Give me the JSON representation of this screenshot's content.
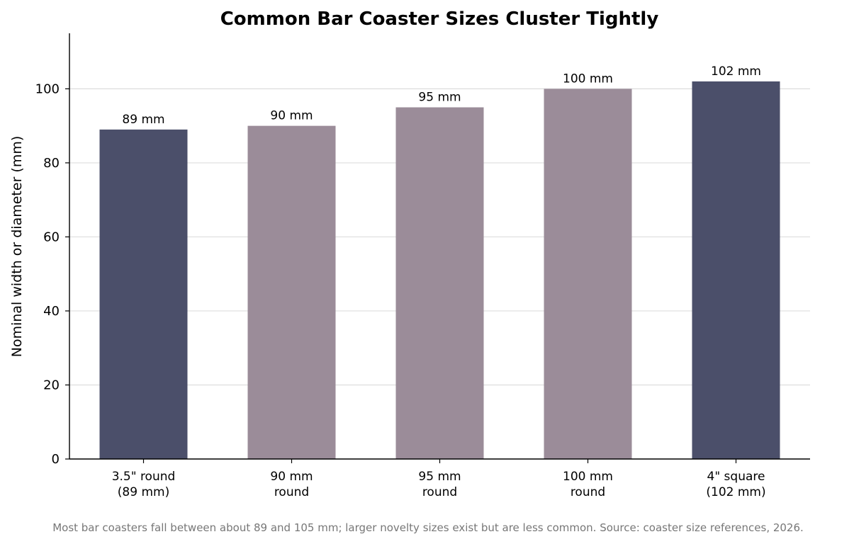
{
  "chart_data": {
    "type": "bar",
    "title": "Common Bar Coaster Sizes Cluster Tightly",
    "xlabel": "",
    "ylabel": "Nominal width or diameter (mm)",
    "ylim": [
      0,
      115
    ],
    "yticks": [
      "0",
      "20",
      "40",
      "60",
      "80",
      "100"
    ],
    "grid": "horizontal",
    "categories": [
      [
        "3.5\" round",
        "(89 mm)"
      ],
      [
        "90 mm",
        "round"
      ],
      [
        "95 mm",
        "round"
      ],
      [
        "100 mm",
        "round"
      ],
      [
        "4\" square",
        "(102 mm)"
      ]
    ],
    "values": [
      89,
      90,
      95,
      100,
      102
    ],
    "data_labels": [
      "89 mm",
      "90 mm",
      "95 mm",
      "100 mm",
      "102 mm"
    ],
    "bar_colors": [
      "#4b4f6a",
      "#9b8c99",
      "#9b8c99",
      "#9b8c99",
      "#4b4f6a"
    ],
    "grid_color": "#dddddd",
    "axis_color": "#000000"
  },
  "footnote": "Most bar coasters fall between about 89 and 105 mm; larger novelty sizes exist but are less common. Source: coaster size references, 2026."
}
